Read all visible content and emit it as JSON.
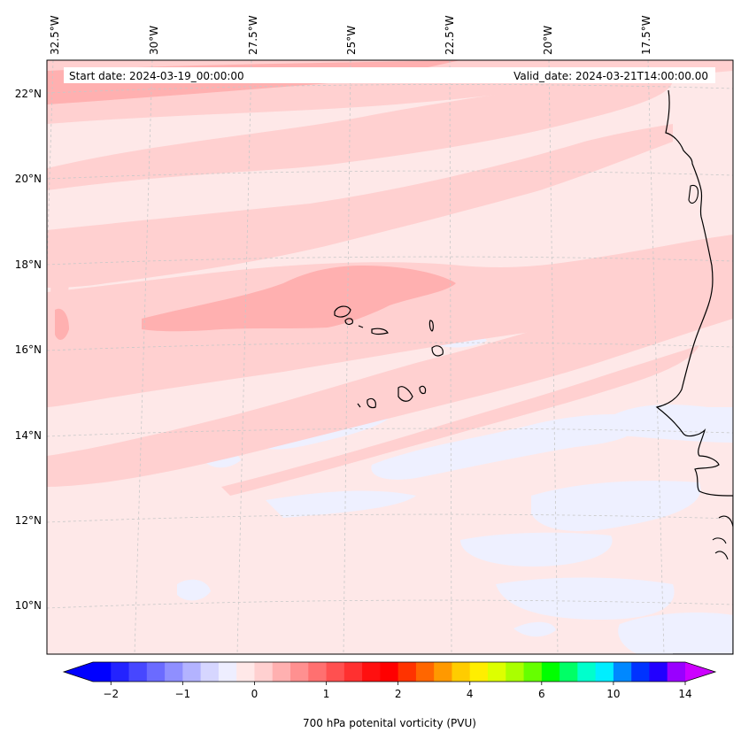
{
  "header": {
    "start_date": "Start date: 2024-03-19_00:00:00",
    "valid_date": "Valid_date: 2024-03-21T14:00:00.00"
  },
  "map": {
    "longitude_labels": [
      "32.5°W",
      "30°W",
      "27.5°W",
      "25°W",
      "22.5°W",
      "20°W",
      "17.5°W"
    ],
    "latitude_labels": [
      "22°N",
      "20°N",
      "18°N",
      "16°N",
      "14°N",
      "12°N",
      "10°N"
    ],
    "field_colors": {
      "background": "#fee8e8",
      "light_pink": "#ffd0d0",
      "medium_pink": "#ffb0b0",
      "light_blue": "#eef0ff"
    }
  },
  "colorbar": {
    "title": "700 hPa potenital vorticity (PVU)",
    "tick_labels": [
      "−2",
      "−1",
      "0",
      "1",
      "2",
      "4",
      "6",
      "10",
      "14"
    ],
    "colors": [
      "#0000ff",
      "#2323ff",
      "#4747ff",
      "#6b6bff",
      "#8f8fff",
      "#b3b3ff",
      "#d6d6ff",
      "#eeeeff",
      "#ffe8e8",
      "#ffd0d0",
      "#ffb0b0",
      "#ff9090",
      "#ff7070",
      "#ff5050",
      "#ff3030",
      "#ff1010",
      "#ff0000",
      "#ff3300",
      "#ff6600",
      "#ff9900",
      "#ffcc00",
      "#ffee00",
      "#ddff00",
      "#aaff00",
      "#66ff00",
      "#00ff00",
      "#00ff66",
      "#00ffcc",
      "#00eeff",
      "#0088ff",
      "#0033ff",
      "#2200ff",
      "#9900ff"
    ],
    "extend_low_color": "#0000ff",
    "extend_high_color": "#cc00ff"
  }
}
